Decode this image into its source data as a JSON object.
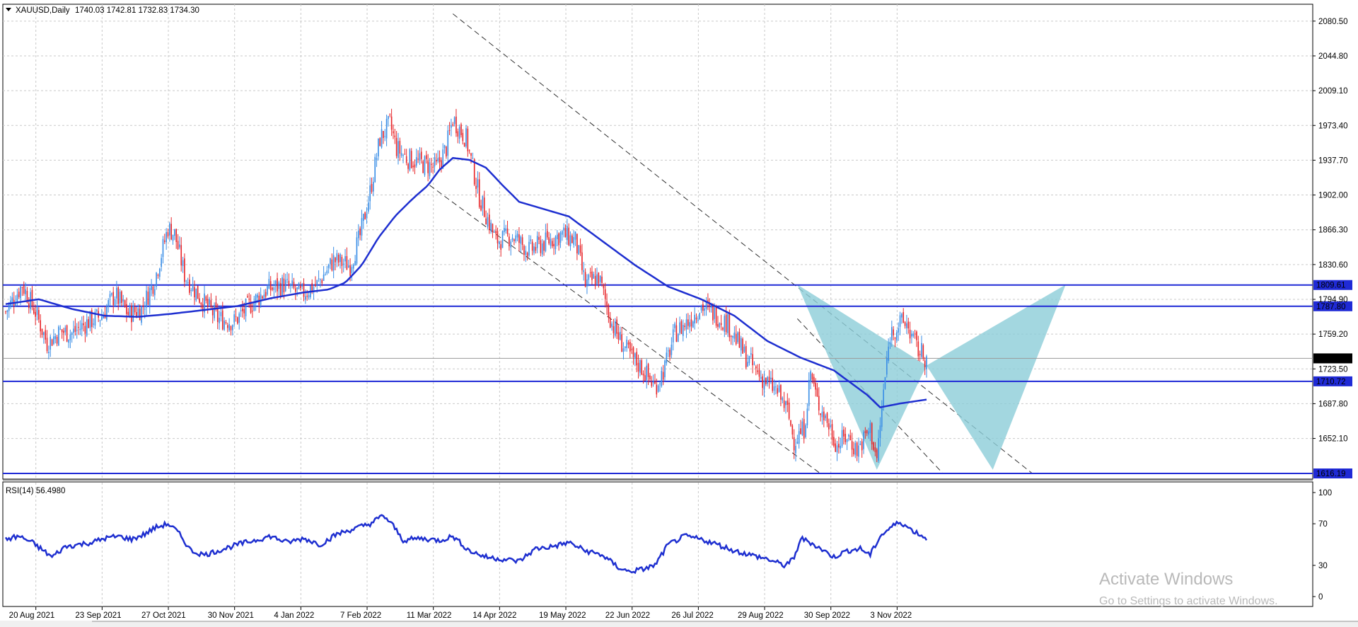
{
  "header": {
    "symbol": "XAUUSD,Daily",
    "ohlc": "1740.03 1742.81 1732.83 1734.30",
    "rsi_label": "RSI(14) 56.4980"
  },
  "watermark": {
    "line1": "Activate Windows",
    "line2": "Go to Settings to activate Windows."
  },
  "colors": {
    "bull": "#3a8ee6",
    "bear": "#e8262a",
    "ma": "#1e2fd0",
    "hline": "#1f2ad6",
    "pattern": "#8ccdd8",
    "grid": "#c9c9c9"
  },
  "chart_data": [
    {
      "type": "candlestick",
      "title": "XAUUSD,Daily",
      "ylim": [
        1616.19,
        2092
      ],
      "price_ticks": [
        "2080.50",
        "2044.80",
        "2009.10",
        "1973.40",
        "1937.70",
        "1902.00",
        "1866.30",
        "1830.60",
        "1794.90",
        "1759.20",
        "1723.50",
        "1687.80",
        "1652.10"
      ],
      "date_ticks": [
        "20 Aug 2021",
        "23 Sep 2021",
        "27 Oct 2021",
        "30 Nov 2021",
        "4 Jan 2022",
        "7 Feb 2022",
        "11 Mar 2022",
        "14 Apr 2022",
        "19 May 2022",
        "22 Jun 2022",
        "26 Jul 2022",
        "29 Aug 2022",
        "30 Sep 2022",
        "3 Nov 2022"
      ],
      "horizontal_levels": [
        "1809.61",
        "1787.80",
        "1710.72",
        "1616.19"
      ],
      "current_price": "1734.30",
      "close_path": [
        [
          0,
          1782
        ],
        [
          10,
          1810
        ],
        [
          18,
          1782
        ],
        [
          25,
          1750
        ],
        [
          33,
          1762
        ],
        [
          40,
          1760
        ],
        [
          50,
          1772
        ],
        [
          58,
          1778
        ],
        [
          66,
          1800
        ],
        [
          74,
          1780
        ],
        [
          82,
          1785
        ],
        [
          90,
          1815
        ],
        [
          98,
          1868
        ],
        [
          102,
          1862
        ],
        [
          108,
          1820
        ],
        [
          118,
          1795
        ],
        [
          128,
          1775
        ],
        [
          138,
          1772
        ],
        [
          148,
          1790
        ],
        [
          158,
          1805
        ],
        [
          168,
          1810
        ],
        [
          178,
          1800
        ],
        [
          188,
          1810
        ],
        [
          198,
          1835
        ],
        [
          208,
          1830
        ],
        [
          214,
          1860
        ],
        [
          220,
          1905
        ],
        [
          226,
          1960
        ],
        [
          232,
          1975
        ],
        [
          236,
          1950
        ],
        [
          242,
          1940
        ],
        [
          250,
          1935
        ],
        [
          260,
          1930
        ],
        [
          266,
          1950
        ],
        [
          270,
          1980
        ],
        [
          278,
          1960
        ],
        [
          286,
          1900
        ],
        [
          296,
          1855
        ],
        [
          306,
          1860
        ],
        [
          316,
          1845
        ],
        [
          328,
          1855
        ],
        [
          336,
          1862
        ],
        [
          344,
          1855
        ],
        [
          350,
          1810
        ],
        [
          358,
          1818
        ],
        [
          366,
          1770
        ],
        [
          372,
          1750
        ],
        [
          378,
          1735
        ],
        [
          384,
          1725
        ],
        [
          392,
          1705
        ],
        [
          398,
          1725
        ],
        [
          404,
          1760
        ],
        [
          412,
          1772
        ],
        [
          420,
          1788
        ],
        [
          428,
          1780
        ],
        [
          436,
          1770
        ],
        [
          446,
          1738
        ],
        [
          456,
          1715
        ],
        [
          466,
          1700
        ],
        [
          472,
          1680
        ],
        [
          476,
          1650
        ],
        [
          482,
          1662
        ],
        [
          486,
          1720
        ],
        [
          490,
          1690
        ],
        [
          496,
          1670
        ],
        [
          502,
          1645
        ],
        [
          508,
          1655
        ],
        [
          514,
          1640
        ],
        [
          522,
          1662
        ],
        [
          526,
          1630
        ],
        [
          530,
          1700
        ],
        [
          534,
          1760
        ],
        [
          540,
          1770
        ],
        [
          544,
          1770
        ],
        [
          550,
          1745
        ],
        [
          556,
          1734
        ]
      ],
      "ma_path": [
        [
          0,
          1790
        ],
        [
          20,
          1795
        ],
        [
          40,
          1785
        ],
        [
          60,
          1778
        ],
        [
          80,
          1777
        ],
        [
          100,
          1780
        ],
        [
          120,
          1784
        ],
        [
          140,
          1788
        ],
        [
          160,
          1796
        ],
        [
          180,
          1802
        ],
        [
          195,
          1805
        ],
        [
          205,
          1812
        ],
        [
          215,
          1830
        ],
        [
          225,
          1858
        ],
        [
          235,
          1880
        ],
        [
          245,
          1897
        ],
        [
          255,
          1912
        ],
        [
          262,
          1928
        ],
        [
          270,
          1940
        ],
        [
          280,
          1938
        ],
        [
          290,
          1930
        ],
        [
          300,
          1912
        ],
        [
          310,
          1895
        ],
        [
          320,
          1890
        ],
        [
          340,
          1880
        ],
        [
          360,
          1855
        ],
        [
          380,
          1830
        ],
        [
          400,
          1808
        ],
        [
          420,
          1795
        ],
        [
          440,
          1778
        ],
        [
          460,
          1752
        ],
        [
          480,
          1735
        ],
        [
          500,
          1722
        ],
        [
          520,
          1697
        ],
        [
          528,
          1684
        ],
        [
          540,
          1688
        ],
        [
          556,
          1692
        ]
      ]
    },
    {
      "type": "line",
      "title": "RSI(14) 56.4980",
      "ylim": [
        0,
        100
      ],
      "ticks": [
        "100",
        "70",
        "30",
        "0"
      ],
      "values_path": [
        [
          0,
          55
        ],
        [
          8,
          58
        ],
        [
          16,
          52
        ],
        [
          22,
          45
        ],
        [
          28,
          38
        ],
        [
          36,
          48
        ],
        [
          44,
          50
        ],
        [
          52,
          52
        ],
        [
          60,
          56
        ],
        [
          68,
          58
        ],
        [
          76,
          55
        ],
        [
          84,
          60
        ],
        [
          90,
          66
        ],
        [
          98,
          70
        ],
        [
          104,
          62
        ],
        [
          112,
          44
        ],
        [
          120,
          40
        ],
        [
          130,
          45
        ],
        [
          140,
          50
        ],
        [
          150,
          54
        ],
        [
          160,
          58
        ],
        [
          170,
          52
        ],
        [
          180,
          56
        ],
        [
          190,
          50
        ],
        [
          200,
          60
        ],
        [
          210,
          65
        ],
        [
          220,
          70
        ],
        [
          228,
          78
        ],
        [
          234,
          68
        ],
        [
          240,
          54
        ],
        [
          250,
          56
        ],
        [
          262,
          54
        ],
        [
          270,
          58
        ],
        [
          280,
          44
        ],
        [
          290,
          38
        ],
        [
          300,
          36
        ],
        [
          310,
          34
        ],
        [
          320,
          46
        ],
        [
          330,
          48
        ],
        [
          340,
          52
        ],
        [
          350,
          44
        ],
        [
          360,
          40
        ],
        [
          370,
          28
        ],
        [
          376,
          24
        ],
        [
          384,
          26
        ],
        [
          392,
          30
        ],
        [
          400,
          50
        ],
        [
          410,
          58
        ],
        [
          420,
          55
        ],
        [
          430,
          50
        ],
        [
          440,
          44
        ],
        [
          450,
          40
        ],
        [
          460,
          36
        ],
        [
          470,
          30
        ],
        [
          476,
          36
        ],
        [
          480,
          56
        ],
        [
          486,
          52
        ],
        [
          492,
          46
        ],
        [
          500,
          38
        ],
        [
          508,
          44
        ],
        [
          516,
          46
        ],
        [
          522,
          40
        ],
        [
          528,
          58
        ],
        [
          534,
          66
        ],
        [
          540,
          72
        ],
        [
          546,
          65
        ],
        [
          556,
          56
        ]
      ]
    }
  ]
}
